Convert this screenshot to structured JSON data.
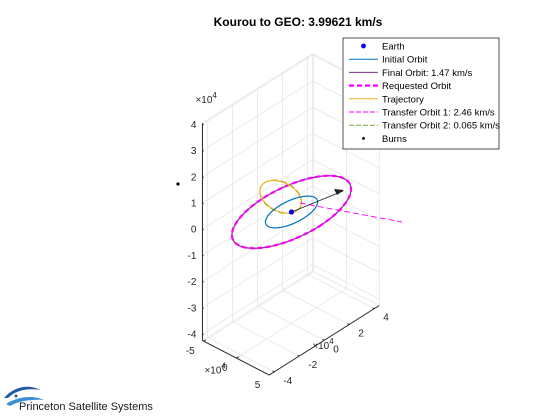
{
  "chart_data": {
    "type": "line",
    "title": "Kourou to GEO: 3.99621 km/s",
    "xlabel": "",
    "ylabel": "",
    "zlabel": "",
    "grid": true,
    "legend_placement": "top-right",
    "view": "3d",
    "axes": {
      "x": {
        "exponent": "×10^4",
        "ticks": [
          "-5",
          "0",
          "5"
        ],
        "lim": [
          -5,
          5
        ]
      },
      "y": {
        "exponent": "×10^4",
        "ticks": [
          "-4",
          "-2",
          "0",
          "2",
          "4"
        ],
        "lim": [
          -4.5,
          4.5
        ]
      },
      "z": {
        "exponent": "×10^4",
        "ticks": [
          "-4",
          "-3",
          "-2",
          "-1",
          "0",
          "1",
          "2",
          "3",
          "4"
        ],
        "lim": [
          -4.2,
          4
        ]
      }
    },
    "series": [
      {
        "name": "Earth",
        "color": "#0000ff",
        "style": "point"
      },
      {
        "name": "Initial Orbit",
        "color": "#0072bd",
        "style": "solid"
      },
      {
        "name": "Final Orbit: 1.47 km/s",
        "color": "#7e2f8e",
        "style": "solid"
      },
      {
        "name": "Requested Orbit",
        "color": "#ff00ff",
        "style": "thick-dashed"
      },
      {
        "name": "Trajectory",
        "color": "#edb120",
        "style": "solid"
      },
      {
        "name": "Transfer Orbit 1:  2.46 km/s",
        "color": "#ff00ff",
        "style": "dashed"
      },
      {
        "name": "Transfer Orbit 2: 0.065 km/s",
        "color": "#77ac30",
        "style": "dashed"
      },
      {
        "name": "Burns",
        "color": "#000000",
        "style": "point"
      }
    ],
    "orbit_radii": {
      "initial": 0.66,
      "geo": 4.22
    },
    "exponent": "4"
  },
  "branding": {
    "company": "Princeton Satellite Systems"
  },
  "colors": {
    "grid": "#e6e6e6",
    "axis": "#262626"
  }
}
